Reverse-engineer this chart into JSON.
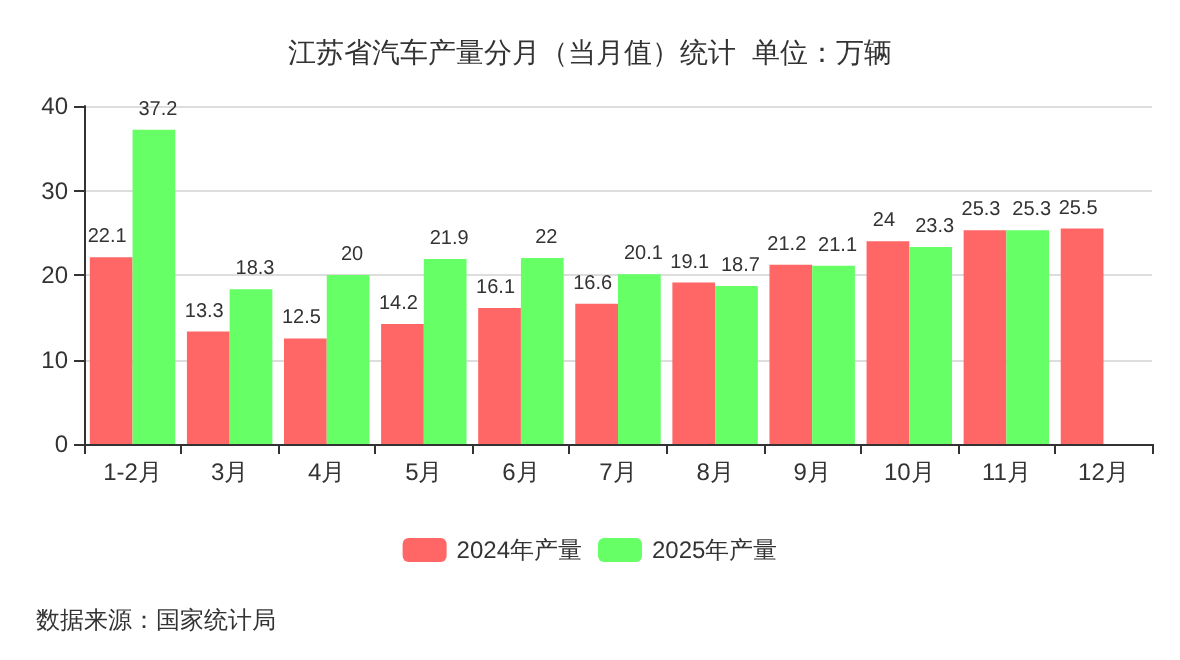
{
  "chart_data": {
    "type": "bar",
    "title": "江苏省汽车产量分月（当月值）统计  单位：万辆",
    "categories": [
      "1-2月",
      "3月",
      "4月",
      "5月",
      "6月",
      "7月",
      "8月",
      "9月",
      "10月",
      "11月",
      "12月"
    ],
    "series": [
      {
        "name": "2024年产量",
        "color": "#ff6666",
        "values": [
          22.1,
          13.3,
          12.5,
          14.2,
          16.1,
          16.6,
          19.1,
          21.2,
          24,
          25.3,
          25.5
        ]
      },
      {
        "name": "2025年产量",
        "color": "#66ff66",
        "values": [
          37.2,
          18.3,
          20,
          21.9,
          22,
          20.1,
          18.7,
          21.1,
          23.3,
          25.3,
          null
        ]
      }
    ],
    "ylim": [
      0,
      40
    ],
    "yticks": [
      0,
      10,
      20,
      30,
      40
    ],
    "grid": "y",
    "legend": "bottom",
    "data_labels": true,
    "annotations": [
      "数据来源：国家统计局"
    ]
  }
}
